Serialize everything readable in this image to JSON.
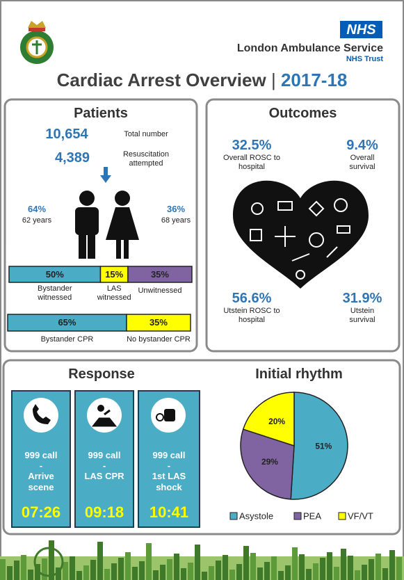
{
  "header": {
    "badge": "NHS",
    "organisation": "London Ambulance Service",
    "trust": "NHS Trust",
    "title": "Cardiac Arrest Overview",
    "separator": "|",
    "year": "2017-18"
  },
  "patients": {
    "title": "Patients",
    "total": {
      "value": "10,654",
      "label": "Total number"
    },
    "resuscitation": {
      "value": "4,389",
      "label": "Resuscitation attempted"
    },
    "male": {
      "share": "64%",
      "age": "62 years"
    },
    "female": {
      "share": "36%",
      "age": "68 years"
    },
    "witness": [
      {
        "name": "Bystander witnessed",
        "value": 50,
        "label": "50%",
        "color": "#4bacc6"
      },
      {
        "name": "LAS witnessed",
        "value": 15,
        "label": "15%",
        "color": "#ffff00"
      },
      {
        "name": "Unwitnessed",
        "value": 35,
        "label": "35%",
        "color": "#8064a2"
      }
    ],
    "cpr": [
      {
        "name": "Bystander CPR",
        "value": 65,
        "label": "65%",
        "color": "#4bacc6"
      },
      {
        "name": "No bystander CPR",
        "value": 35,
        "label": "35%",
        "color": "#ffff00"
      }
    ]
  },
  "outcomes": {
    "title": "Outcomes",
    "items": [
      {
        "value": "32.5%",
        "label": "Overall ROSC to hospital"
      },
      {
        "value": "9.4%",
        "label": "Overall survival"
      },
      {
        "value": "56.6%",
        "label": "Utstein ROSC to hospital"
      },
      {
        "value": "31.9%",
        "label": "Utstein survival"
      }
    ]
  },
  "response": {
    "title": "Response",
    "cards": [
      {
        "event": "999 call",
        "dash": "-",
        "target": "Arrive scene",
        "time": "07:26"
      },
      {
        "event": "999 call",
        "dash": "-",
        "target": "LAS CPR",
        "time": "09:18"
      },
      {
        "event": "999 call",
        "dash": "-",
        "target": "1st LAS shock",
        "time": "10:41"
      }
    ]
  },
  "chart_data": {
    "type": "pie",
    "title": "Initial rhythm",
    "categories": [
      "Asystole",
      "PEA",
      "VF/VT"
    ],
    "values": [
      51,
      29,
      20
    ],
    "value_labels": [
      "51%",
      "29%",
      "20%"
    ],
    "colors": [
      "#4bacc6",
      "#8064a2",
      "#ffff00"
    ]
  }
}
